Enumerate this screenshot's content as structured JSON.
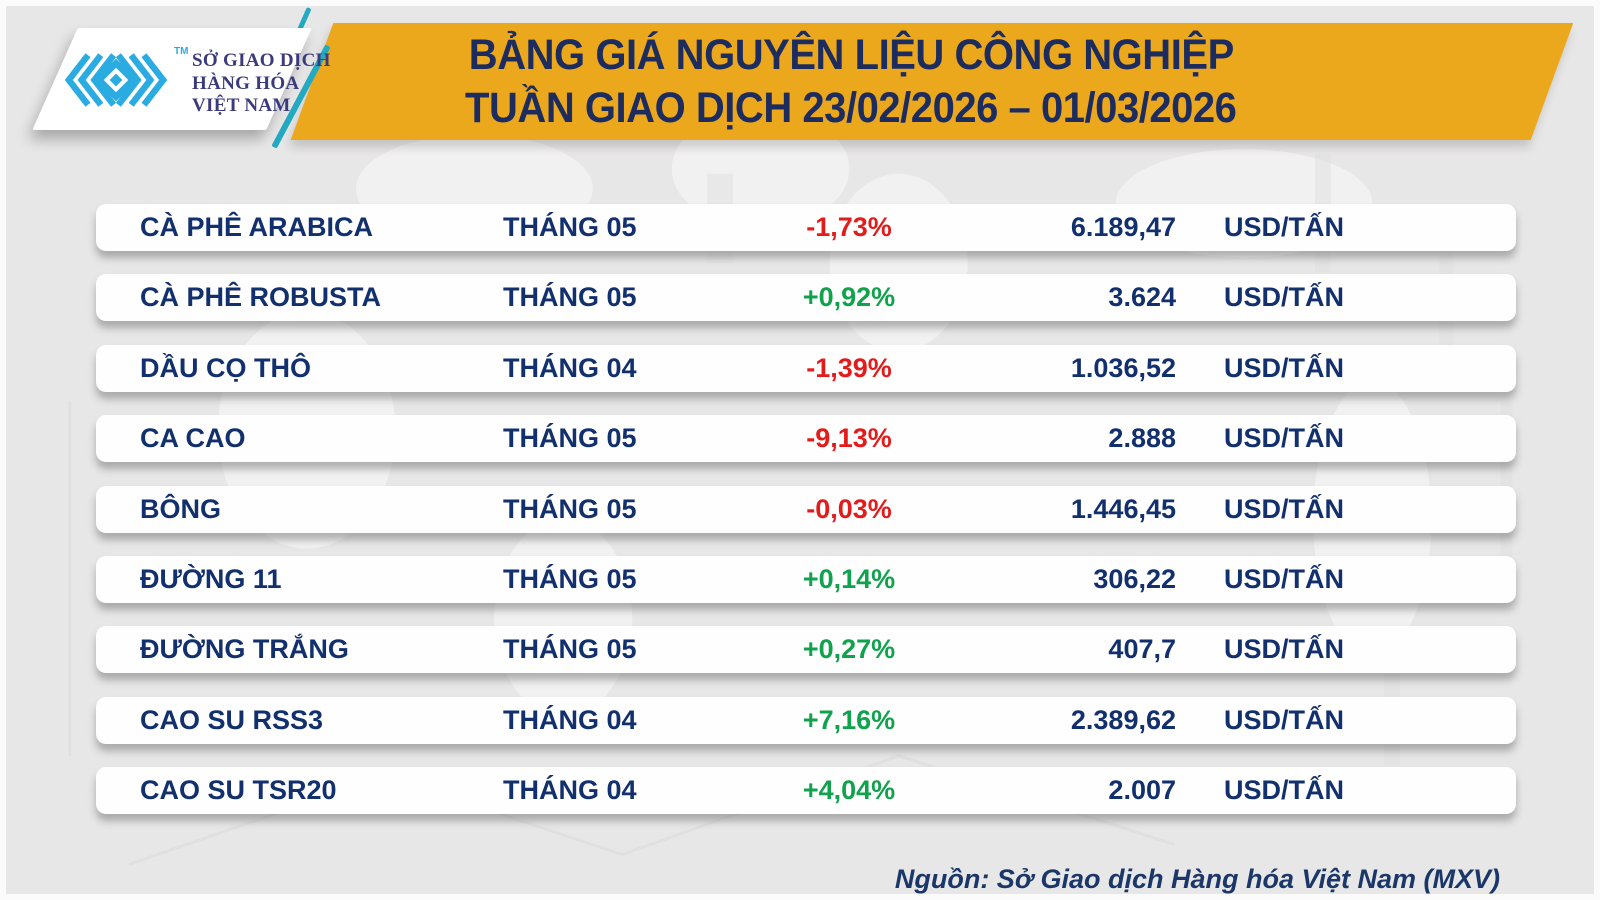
{
  "header": {
    "logo": {
      "org_lines": [
        "SỞ GIAO DỊCH",
        "HÀNG HÓA",
        "VIỆT NAM"
      ],
      "trademark": "TM"
    },
    "title_line1": "BẢNG GIÁ NGUYÊN LIỆU CÔNG NGHIỆP",
    "title_line2": "TUẦN GIAO DỊCH 23/02/2026 – 01/03/2026"
  },
  "chart_data": {
    "type": "table",
    "title": "BẢNG GIÁ NGUYÊN LIỆU CÔNG NGHIỆP",
    "subtitle": "TUẦN GIAO DỊCH 23/02/2026 – 01/03/2026",
    "rows": [
      {
        "name": "CÀ PHÊ ARABICA",
        "month": "THÁNG 05",
        "change": "-1,73%",
        "price": "6.189,47",
        "unit": "USD/TẤN",
        "direction": "down"
      },
      {
        "name": "CÀ PHÊ ROBUSTA",
        "month": "THÁNG 05",
        "change": "+0,92%",
        "price": "3.624",
        "unit": "USD/TẤN",
        "direction": "up"
      },
      {
        "name": "DẦU CỌ THÔ",
        "month": "THÁNG 04",
        "change": "-1,39%",
        "price": "1.036,52",
        "unit": "USD/TẤN",
        "direction": "down"
      },
      {
        "name": "CA CAO",
        "month": "THÁNG 05",
        "change": "-9,13%",
        "price": "2.888",
        "unit": "USD/TẤN",
        "direction": "down"
      },
      {
        "name": "BÔNG",
        "month": "THÁNG 05",
        "change": "-0,03%",
        "price": "1.446,45",
        "unit": "USD/TẤN",
        "direction": "down"
      },
      {
        "name": "ĐƯỜNG 11",
        "month": "THÁNG 05",
        "change": "+0,14%",
        "price": "306,22",
        "unit": "USD/TẤN",
        "direction": "up"
      },
      {
        "name": "ĐƯỜNG TRẮNG",
        "month": "THÁNG 05",
        "change": "+0,27%",
        "price": "407,7",
        "unit": "USD/TẤN",
        "direction": "up"
      },
      {
        "name": "CAO SU RSS3",
        "month": "THÁNG 04",
        "change": "+7,16%",
        "price": "2.389,62",
        "unit": "USD/TẤN",
        "direction": "up"
      },
      {
        "name": "CAO SU TSR20",
        "month": "THÁNG 04",
        "change": "+4,04%",
        "price": "2.007",
        "unit": "USD/TẤN",
        "direction": "up"
      }
    ]
  },
  "footer": {
    "source": "Nguồn: Sở Giao dịch Hàng hóa Việt Nam (MXV)"
  },
  "colors": {
    "banner": "#ECA81D",
    "title_navy": "#1D2C5E",
    "row_navy": "#12306D",
    "positive_green": "#10A24C",
    "negative_red": "#E31B1B",
    "logo_blue": "#2AABE2",
    "logo_text_indigo": "#3B3A7C",
    "accent_teal": "#24A9C2",
    "background": "#E8E7E7"
  }
}
